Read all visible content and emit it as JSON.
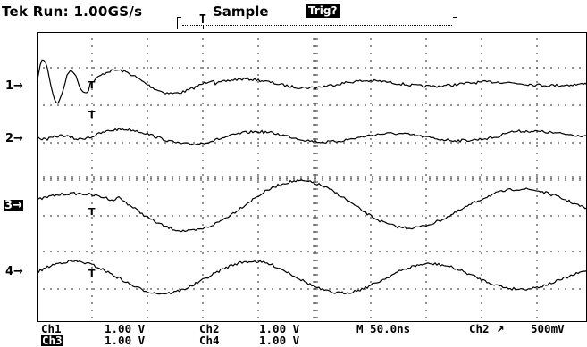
{
  "header": {
    "status_text": "Tek Run: 1.00GS/s",
    "acquire_mode": "Sample",
    "trigger_status": "Trig?",
    "trigger_marker": "T"
  },
  "channel_markers": [
    {
      "label": "1→",
      "highlighted": false
    },
    {
      "label": "2→",
      "highlighted": false
    },
    {
      "label": "3→",
      "highlighted": true
    },
    {
      "label": "4→",
      "highlighted": false
    }
  ],
  "trace_trigger_markers": [
    "T",
    "T",
    "T",
    "T"
  ],
  "readouts": {
    "ch1_label": "Ch1",
    "ch1_scale": "1.00 V",
    "ch2_label": "Ch2",
    "ch2_scale": "1.00 V",
    "ch3_label": "Ch3",
    "ch3_scale": "1.00 V",
    "ch4_label": "Ch4",
    "ch4_scale": "1.00 V",
    "timebase": "M 50.0ns",
    "trigger_source": "Ch2",
    "trigger_slope_icon": "rising-edge-icon",
    "trigger_level": "500mV"
  },
  "colors": {
    "background": "#ffffff",
    "trace": "#000000",
    "grid": "#000000"
  }
}
